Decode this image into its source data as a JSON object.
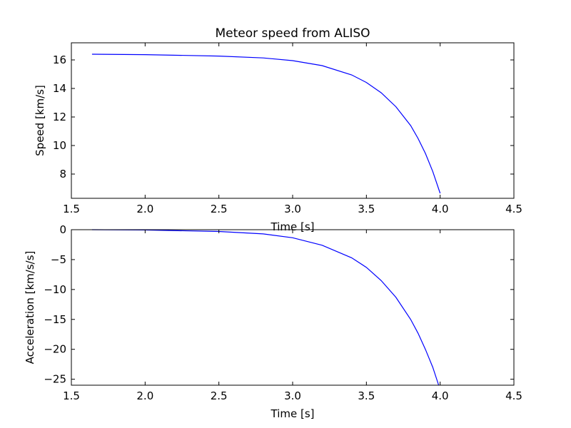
{
  "chart_data": [
    {
      "type": "line",
      "title": "Meteor speed from  ALISO",
      "xlabel": "Time [s]",
      "ylabel": "Speed [km/s]",
      "xlim": [
        1.5,
        4.5
      ],
      "ylim": [
        6.3,
        17.2
      ],
      "xticks": [
        1.5,
        2.0,
        2.5,
        3.0,
        3.5,
        4.0,
        4.5
      ],
      "xtick_labels": [
        "1.5",
        "2.0",
        "2.5",
        "3.0",
        "3.5",
        "4.0",
        "4.5"
      ],
      "yticks": [
        8,
        10,
        12,
        14,
        16
      ],
      "ytick_labels": [
        "8",
        "10",
        "12",
        "14",
        "16"
      ],
      "grid": false,
      "series": [
        {
          "color": "#0000ff",
          "x": [
            1.64,
            2.0,
            2.5,
            2.8,
            3.0,
            3.2,
            3.4,
            3.5,
            3.6,
            3.7,
            3.8,
            3.85,
            3.9,
            3.95,
            4.0
          ],
          "y": [
            16.4,
            16.37,
            16.27,
            16.14,
            15.95,
            15.6,
            14.95,
            14.42,
            13.7,
            12.72,
            11.4,
            10.5,
            9.45,
            8.18,
            6.65
          ]
        }
      ]
    },
    {
      "type": "line",
      "title": "",
      "xlabel": "Time [s]",
      "ylabel": "Acceleration [km/s/s]",
      "xlim": [
        1.5,
        4.5
      ],
      "ylim": [
        -26,
        0
      ],
      "xticks": [
        1.5,
        2.0,
        2.5,
        3.0,
        3.5,
        4.0,
        4.5
      ],
      "xtick_labels": [
        "1.5",
        "2.0",
        "2.5",
        "3.0",
        "3.5",
        "4.0",
        "4.5"
      ],
      "yticks": [
        0,
        -5,
        -10,
        -15,
        -20,
        -25
      ],
      "ytick_labels": [
        "0",
        "−5",
        "−10",
        "−15",
        "−20",
        "−25"
      ],
      "grid": false,
      "series": [
        {
          "color": "#0000ff",
          "x": [
            1.64,
            2.0,
            2.5,
            2.8,
            3.0,
            3.2,
            3.4,
            3.5,
            3.6,
            3.7,
            3.8,
            3.85,
            3.9,
            3.95,
            3.99
          ],
          "y": [
            0,
            -0.05,
            -0.3,
            -0.7,
            -1.35,
            -2.6,
            -4.7,
            -6.3,
            -8.5,
            -11.3,
            -15.0,
            -17.3,
            -20.0,
            -23.0,
            -26.0
          ]
        }
      ]
    }
  ]
}
